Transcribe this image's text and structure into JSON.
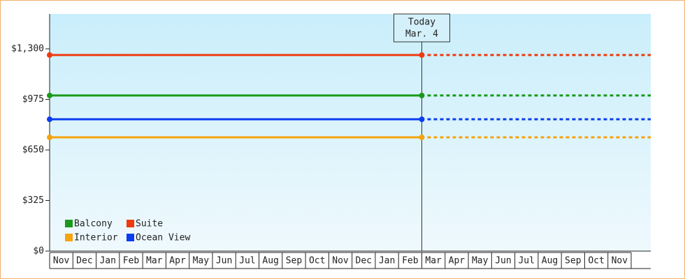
{
  "chart_data": {
    "type": "line",
    "categories": [
      "Nov",
      "Dec",
      "Jan",
      "Feb",
      "Mar",
      "Apr",
      "May",
      "Jun",
      "Jul",
      "Aug",
      "Sep",
      "Oct",
      "Nov",
      "Dec",
      "Jan",
      "Feb",
      "Mar",
      "Apr",
      "May",
      "Jun",
      "Jul",
      "Aug",
      "Sep",
      "Oct",
      "Nov"
    ],
    "series": [
      {
        "name": "Balcony",
        "color": "#1a9a1a",
        "values": [
          1000,
          1000,
          1000,
          1000,
          1000,
          1000,
          1000,
          1000,
          1000,
          1000,
          1000,
          1000,
          1000,
          1000,
          1000,
          1000,
          1000,
          null,
          null,
          null,
          null,
          null,
          null,
          null,
          null
        ]
      },
      {
        "name": "Suite",
        "color": "#ee3a0e",
        "values": [
          1260,
          1260,
          1260,
          1260,
          1260,
          1260,
          1260,
          1260,
          1260,
          1260,
          1260,
          1260,
          1260,
          1260,
          1260,
          1260,
          1260,
          null,
          null,
          null,
          null,
          null,
          null,
          null,
          null
        ]
      },
      {
        "name": "Interior",
        "color": "#f5a30e",
        "values": [
          731,
          731,
          731,
          731,
          731,
          731,
          731,
          731,
          731,
          731,
          731,
          731,
          731,
          731,
          731,
          731,
          731,
          null,
          null,
          null,
          null,
          null,
          null,
          null,
          null
        ]
      },
      {
        "name": "Ocean View",
        "color": "#0a3cf0",
        "values": [
          847,
          847,
          847,
          847,
          847,
          847,
          847,
          847,
          847,
          847,
          847,
          847,
          847,
          847,
          847,
          847,
          847,
          null,
          null,
          null,
          null,
          null,
          null,
          null,
          null
        ]
      }
    ],
    "ylim": [
      0,
      1524
    ],
    "yticks": [
      {
        "value": 0,
        "label": "$0"
      },
      {
        "value": 325,
        "label": "$325"
      },
      {
        "value": 650,
        "label": "$650"
      },
      {
        "value": 975,
        "label": "$975"
      },
      {
        "value": 1300,
        "label": "$1,300"
      }
    ],
    "annotation": [
      "Today",
      "Mar. 4"
    ],
    "legend": "bottom-left"
  }
}
